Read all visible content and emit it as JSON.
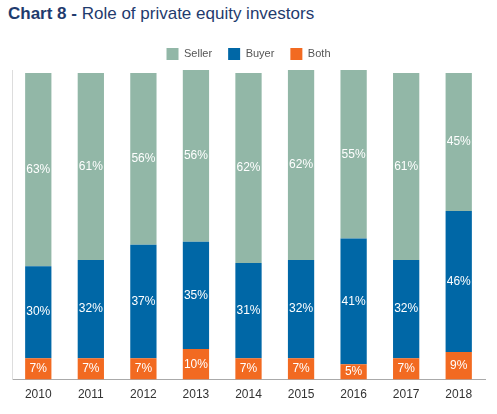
{
  "chart_data": {
    "type": "bar",
    "title": "Chart 8 - Role of private equity investors",
    "categories": [
      "2010",
      "2011",
      "2012",
      "2013",
      "2014",
      "2015",
      "2016",
      "2017",
      "2018"
    ],
    "series": [
      {
        "name": "Seller",
        "color": "#92b7a7",
        "values": [
          63,
          61,
          56,
          56,
          62,
          62,
          55,
          61,
          45
        ],
        "value_labels": [
          "63%",
          "61%",
          "56%",
          "56%",
          "62%",
          "62%",
          "55%",
          "61%",
          "45%"
        ]
      },
      {
        "name": "Buyer",
        "color": "#0067a6",
        "values": [
          30,
          32,
          37,
          35,
          31,
          32,
          41,
          32,
          46
        ],
        "value_labels": [
          "30%",
          "32%",
          "37%",
          "35%",
          "31%",
          "32%",
          "41%",
          "32%",
          "46%"
        ]
      },
      {
        "name": "Both",
        "color": "#f26a21",
        "values": [
          7,
          7,
          7,
          10,
          7,
          7,
          5,
          7,
          9
        ],
        "value_labels": [
          "7%",
          "7%",
          "7%",
          "10%",
          "7%",
          "7%",
          "5%",
          "7%",
          "9%"
        ]
      }
    ],
    "ylim": [
      0,
      101
    ],
    "stacked": true,
    "data_labels": true,
    "legend": "top",
    "grid": false,
    "tick_labels": "x"
  }
}
